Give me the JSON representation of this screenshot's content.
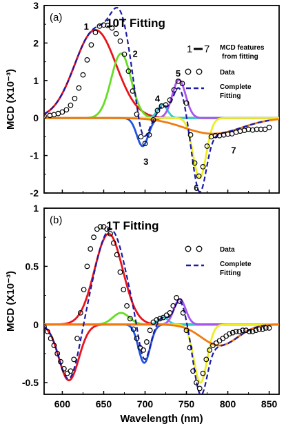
{
  "chart_data": [
    {
      "type": "line",
      "panel_label": "(a)",
      "title": "10T Fitting",
      "ylabel": "MCD (X10⁻³)",
      "xlim": [
        578,
        862
      ],
      "ylim": [
        -2,
        3
      ],
      "yticks": [
        -2,
        -1,
        0,
        1,
        2,
        3
      ],
      "yticklabels": [
        "-2",
        "-1",
        "0",
        "1",
        "2",
        "3"
      ],
      "legend": {
        "features_symbol_left": "1",
        "features_symbol_right": "7",
        "features_text_line1": "MCD features",
        "features_text_line2": "from fitting",
        "data_label": "Data",
        "fit_label_line1": "Complete",
        "fit_label_line2": "Fitting"
      },
      "components": [
        {
          "label": "1",
          "color": "#e8141c",
          "center": 640,
          "amplitude": 2.35,
          "sigma": 25
        },
        {
          "label": "2",
          "color": "#66dd22",
          "center": 671,
          "amplitude": 1.72,
          "sigma": 12
        },
        {
          "label": "3",
          "color": "#2255dd",
          "center": 697,
          "amplitude": -0.75,
          "sigma": 7
        },
        {
          "label": "4",
          "color": "#33cccc",
          "center": 721,
          "amplitude": 0.35,
          "sigma": 6
        },
        {
          "label": "5",
          "color": "#aa55ee",
          "center": 741,
          "amplitude": 1.02,
          "sigma": 8
        },
        {
          "label": "6",
          "color": "#eeee22",
          "center": 766,
          "amplitude": -1.6,
          "sigma": 8
        },
        {
          "label": "7",
          "color": "#f07a10",
          "center": 782,
          "amplitude": -0.42,
          "sigma": 35
        }
      ],
      "feature_labels": [
        {
          "text": "1",
          "x": 629,
          "y": 2.45
        },
        {
          "text": "2",
          "x": 688,
          "y": 1.72
        },
        {
          "text": "3",
          "x": 701,
          "y": -1.15
        },
        {
          "text": "4",
          "x": 715,
          "y": 0.53
        },
        {
          "text": "5",
          "x": 740,
          "y": 1.2
        },
        {
          "text": "6",
          "x": 762,
          "y": -1.85
        },
        {
          "text": "7",
          "x": 807,
          "y": -0.85
        }
      ],
      "series": [
        {
          "name": "Data",
          "x": [
            578,
            585,
            590,
            595,
            600,
            605,
            610,
            615,
            620,
            625,
            630,
            635,
            640,
            645,
            650,
            655,
            660,
            665,
            670,
            675,
            680,
            685,
            690,
            695,
            700,
            705,
            710,
            715,
            720,
            725,
            730,
            735,
            740,
            745,
            750,
            755,
            760,
            765,
            770,
            775,
            780,
            785,
            790,
            795,
            800,
            805,
            810,
            815,
            820,
            825,
            830,
            835,
            840,
            845,
            850
          ],
          "y": [
            0.05,
            0.07,
            0.09,
            0.12,
            0.16,
            0.22,
            0.34,
            0.52,
            0.8,
            1.15,
            1.55,
            1.95,
            2.28,
            2.45,
            2.48,
            2.47,
            2.4,
            2.25,
            2.05,
            1.7,
            1.25,
            0.72,
            0.1,
            -0.5,
            -0.68,
            -0.45,
            -0.05,
            0.2,
            0.32,
            0.35,
            0.48,
            0.75,
            0.98,
            0.92,
            0.4,
            -0.45,
            -1.2,
            -1.55,
            -1.3,
            -0.75,
            -0.5,
            -0.47,
            -0.47,
            -0.45,
            -0.43,
            -0.42,
            -0.38,
            -0.35,
            -0.33,
            -0.3,
            -0.32,
            -0.3,
            -0.3,
            -0.3,
            -0.25
          ]
        }
      ]
    },
    {
      "type": "line",
      "panel_label": "(b)",
      "title": "1T Fitting",
      "xlabel": "Wavelength (nm)",
      "ylabel": "MCD (X10⁻³)",
      "xlim": [
        578,
        862
      ],
      "ylim": [
        -0.6,
        1.0
      ],
      "xticks": [
        600,
        650,
        700,
        750,
        800,
        850
      ],
      "xticklabels": [
        "600",
        "650",
        "700",
        "750",
        "800",
        "850"
      ],
      "yticks": [
        -0.5,
        0,
        0.5,
        1
      ],
      "yticklabels": [
        "-0.5",
        "0",
        "0.5",
        "1"
      ],
      "legend": {
        "data_label": "Data",
        "fit_label_line1": "Complete",
        "fit_label_line2": "Fitting"
      },
      "components": [
        {
          "color": "#e8141c",
          "center": 608,
          "amplitude": -0.48,
          "sigma": 12
        },
        {
          "color": "#e8141c",
          "center": 656,
          "amplitude": 0.78,
          "sigma": 17
        },
        {
          "color": "#66dd22",
          "center": 671,
          "amplitude": 0.1,
          "sigma": 10
        },
        {
          "color": "#2255dd",
          "center": 699,
          "amplitude": -0.33,
          "sigma": 7
        },
        {
          "color": "#33cccc",
          "center": 722,
          "amplitude": 0.06,
          "sigma": 6
        },
        {
          "color": "#aa55ee",
          "center": 742,
          "amplitude": 0.22,
          "sigma": 7
        },
        {
          "color": "#eeee22",
          "center": 767,
          "amplitude": -0.5,
          "sigma": 8
        },
        {
          "color": "#f07a10",
          "center": 790,
          "amplitude": -0.18,
          "sigma": 22
        }
      ],
      "series": [
        {
          "name": "Data",
          "x": [
            578,
            582,
            586,
            590,
            594,
            598,
            602,
            606,
            610,
            614,
            618,
            622,
            626,
            630,
            634,
            638,
            642,
            646,
            650,
            654,
            658,
            662,
            666,
            670,
            674,
            678,
            682,
            686,
            690,
            694,
            698,
            702,
            706,
            710,
            714,
            718,
            722,
            726,
            730,
            734,
            738,
            742,
            746,
            750,
            754,
            758,
            762,
            766,
            770,
            774,
            778,
            782,
            786,
            790,
            794,
            798,
            802,
            806,
            810,
            814,
            818,
            822,
            826,
            830,
            834,
            838,
            842,
            846,
            850
          ],
          "y": [
            -0.02,
            -0.06,
            -0.12,
            -0.18,
            -0.25,
            -0.32,
            -0.38,
            -0.42,
            -0.4,
            -0.3,
            -0.12,
            0.1,
            0.3,
            0.5,
            0.65,
            0.75,
            0.82,
            0.84,
            0.84,
            0.82,
            0.78,
            0.7,
            0.6,
            0.45,
            0.3,
            0.16,
            0.05,
            -0.04,
            -0.12,
            -0.2,
            -0.22,
            -0.15,
            -0.05,
            0.02,
            0.04,
            0.05,
            0.06,
            0.08,
            0.1,
            0.16,
            0.23,
            0.2,
            0.1,
            -0.05,
            -0.2,
            -0.4,
            -0.5,
            -0.55,
            -0.42,
            -0.3,
            -0.22,
            -0.18,
            -0.16,
            -0.14,
            -0.12,
            -0.1,
            -0.08,
            -0.07,
            -0.06,
            -0.06,
            -0.05,
            -0.05,
            -0.06,
            -0.06,
            -0.05,
            -0.04,
            -0.04,
            -0.03,
            -0.03
          ]
        }
      ]
    }
  ]
}
